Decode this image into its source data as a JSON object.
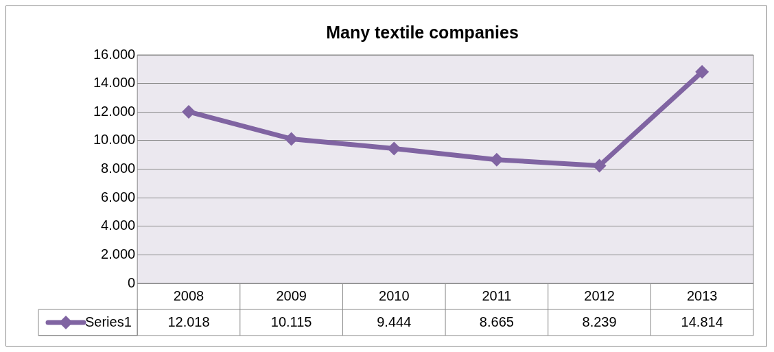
{
  "chart_data": {
    "type": "line",
    "title": "Many textile companies",
    "categories": [
      "2008",
      "2009",
      "2010",
      "2011",
      "2012",
      "2013"
    ],
    "series": [
      {
        "name": "Series1",
        "color": "#8064a2",
        "values": [
          12018,
          10115,
          9444,
          8665,
          8239,
          14814
        ],
        "value_labels": [
          "12.018",
          "10.115",
          "9.444",
          "8.665",
          "8.239",
          "14.814"
        ]
      }
    ],
    "ylim": [
      0,
      16000
    ],
    "yticks": [
      {
        "value": 0,
        "label": "0"
      },
      {
        "value": 2000,
        "label": "2.000"
      },
      {
        "value": 4000,
        "label": "4.000"
      },
      {
        "value": 6000,
        "label": "6.000"
      },
      {
        "value": 8000,
        "label": "8.000"
      },
      {
        "value": 10000,
        "label": "10.000"
      },
      {
        "value": 12000,
        "label": "12.000"
      },
      {
        "value": 14000,
        "label": "14.000"
      },
      {
        "value": 16000,
        "label": "16.000"
      }
    ],
    "grid": "y",
    "legend": "bottom",
    "marker": "diamond",
    "line_style": "solid"
  }
}
